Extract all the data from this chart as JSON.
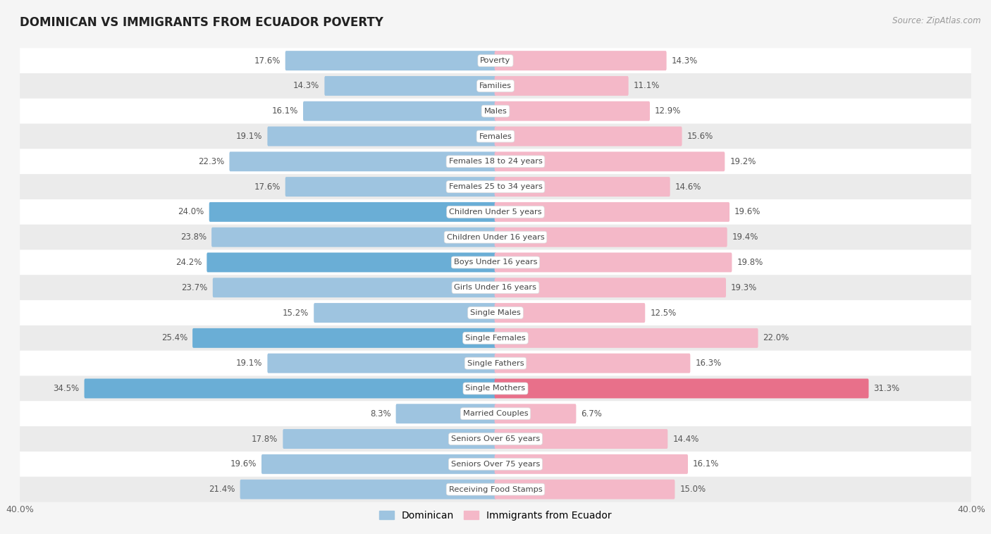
{
  "title": "DOMINICAN VS IMMIGRANTS FROM ECUADOR POVERTY",
  "source": "Source: ZipAtlas.com",
  "categories": [
    "Poverty",
    "Families",
    "Males",
    "Females",
    "Females 18 to 24 years",
    "Females 25 to 34 years",
    "Children Under 5 years",
    "Children Under 16 years",
    "Boys Under 16 years",
    "Girls Under 16 years",
    "Single Males",
    "Single Females",
    "Single Fathers",
    "Single Mothers",
    "Married Couples",
    "Seniors Over 65 years",
    "Seniors Over 75 years",
    "Receiving Food Stamps"
  ],
  "dominican": [
    17.6,
    14.3,
    16.1,
    19.1,
    22.3,
    17.6,
    24.0,
    23.8,
    24.2,
    23.7,
    15.2,
    25.4,
    19.1,
    34.5,
    8.3,
    17.8,
    19.6,
    21.4
  ],
  "ecuador": [
    14.3,
    11.1,
    12.9,
    15.6,
    19.2,
    14.6,
    19.6,
    19.4,
    19.8,
    19.3,
    12.5,
    22.0,
    16.3,
    31.3,
    6.7,
    14.4,
    16.1,
    15.0
  ],
  "dominican_color_normal": "#9ec4e0",
  "dominican_color_highlight": "#6aaed6",
  "ecuador_color_normal": "#f4b8c8",
  "ecuador_color_highlight": "#e8708a",
  "dominican_highlight_indices": [
    6,
    8,
    11,
    13
  ],
  "ecuador_highlight_indices": [
    13
  ],
  "background_color": "#f5f5f5",
  "row_color_even": "#ffffff",
  "row_color_odd": "#ebebeb",
  "axis_max": 40.0,
  "legend_dominican": "Dominican",
  "legend_ecuador": "Immigrants from Ecuador",
  "value_label_color": "#555555",
  "category_label_color": "#444444",
  "title_color": "#222222",
  "source_color": "#999999"
}
